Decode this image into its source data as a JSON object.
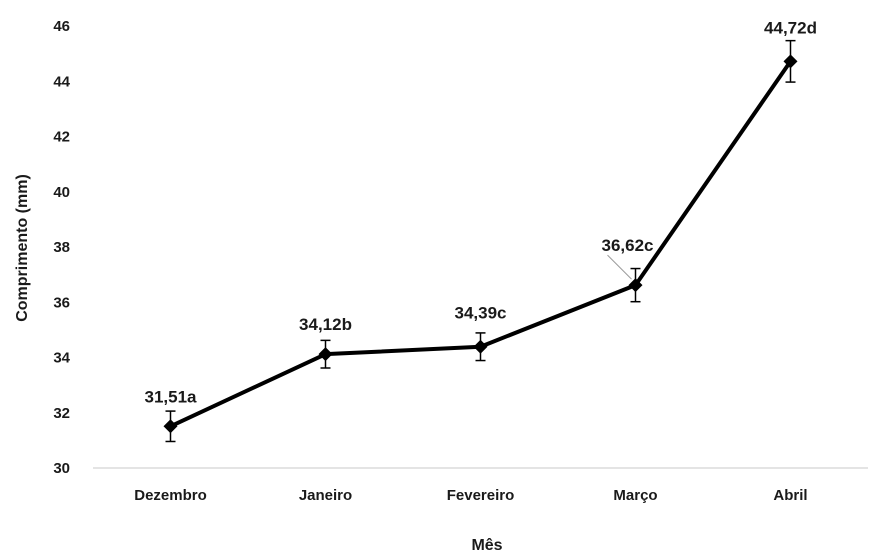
{
  "chart_data": {
    "type": "line",
    "title": "",
    "xlabel": "Mês",
    "ylabel": "Comprimento (mm)",
    "ylim": [
      30,
      46
    ],
    "yticks": [
      "30",
      "32",
      "34",
      "36",
      "38",
      "40",
      "42",
      "44",
      "46"
    ],
    "categories": [
      "Dezembro",
      "Janeiro",
      "Fevereiro",
      "Março",
      "Abril"
    ],
    "series": [
      {
        "values": [
          31.51,
          34.12,
          34.39,
          36.62,
          44.72
        ],
        "error": [
          0.55,
          0.5,
          0.5,
          0.6,
          0.75
        ],
        "labels": [
          "31,51a",
          "34,12b",
          "34,39c",
          "36,62c",
          "44,72d"
        ]
      }
    ],
    "grid": false,
    "marker": "diamond",
    "line_color": "#000000"
  }
}
